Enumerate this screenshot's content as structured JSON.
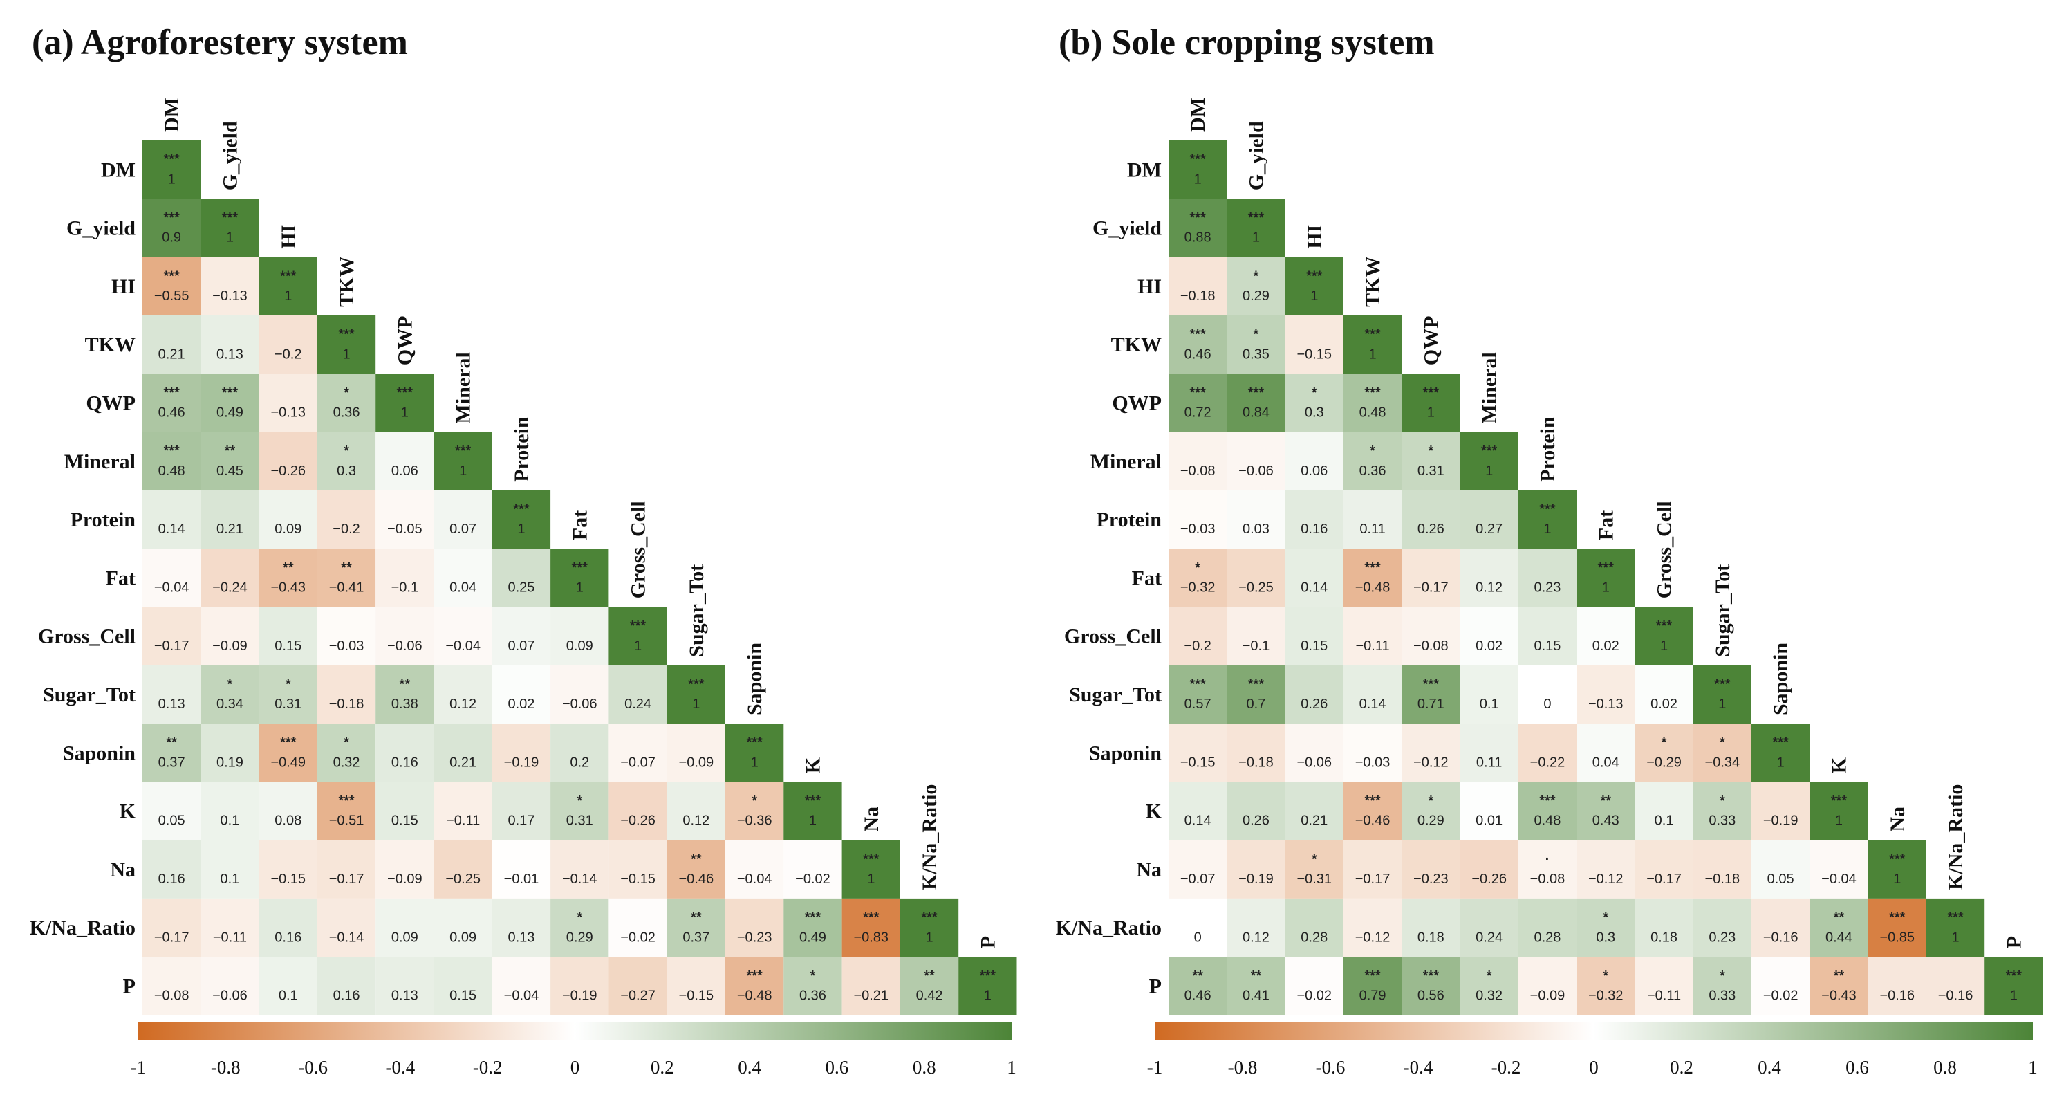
{
  "chart_data": [
    {
      "type": "heatmap",
      "title": "(a) Agroforestery system",
      "variables": [
        "DM",
        "G_yield",
        "HI",
        "TKW",
        "QWP",
        "Mineral",
        "Protein",
        "Fat",
        "Gross_Cell",
        "Sugar_Tot",
        "Saponin",
        "K",
        "Na",
        "K/Na_Ratio",
        "P"
      ],
      "column_labels": [
        "DM",
        "G_yield",
        "HI",
        "TKW",
        "QWP",
        "Mineral",
        "Protein",
        "Fat",
        "Gross_Cell",
        "Sugar_Tot",
        "Saponin",
        "K",
        "Na",
        "K/Na_Ratio",
        "P"
      ],
      "values": [
        [
          1
        ],
        [
          0.9,
          1
        ],
        [
          -0.55,
          -0.13,
          1
        ],
        [
          0.21,
          0.13,
          -0.2,
          1
        ],
        [
          0.46,
          0.49,
          -0.13,
          0.36,
          1
        ],
        [
          0.48,
          0.45,
          -0.26,
          0.3,
          0.06,
          1
        ],
        [
          0.14,
          0.21,
          0.09,
          -0.2,
          -0.05,
          0.07,
          1
        ],
        [
          -0.04,
          -0.24,
          -0.43,
          -0.41,
          -0.1,
          0.04,
          0.25,
          1
        ],
        [
          -0.17,
          -0.09,
          0.15,
          -0.03,
          -0.06,
          -0.04,
          0.07,
          0.09,
          1
        ],
        [
          0.13,
          0.34,
          0.31,
          -0.18,
          0.38,
          0.12,
          0.02,
          -0.06,
          0.24,
          1
        ],
        [
          0.37,
          0.19,
          -0.49,
          0.32,
          0.16,
          0.21,
          -0.19,
          0.2,
          -0.07,
          -0.09,
          1
        ],
        [
          0.05,
          0.1,
          0.08,
          -0.51,
          0.15,
          -0.11,
          0.17,
          0.31,
          -0.26,
          0.12,
          -0.36,
          1
        ],
        [
          0.16,
          0.1,
          -0.15,
          -0.17,
          -0.09,
          -0.25,
          -0.01,
          -0.14,
          -0.15,
          -0.46,
          -0.04,
          -0.02,
          1
        ],
        [
          -0.17,
          -0.11,
          0.16,
          -0.14,
          0.09,
          0.09,
          0.13,
          0.29,
          -0.02,
          0.37,
          -0.23,
          0.49,
          -0.83,
          1
        ],
        [
          -0.08,
          -0.06,
          0.1,
          0.16,
          0.13,
          0.15,
          -0.04,
          -0.19,
          -0.27,
          -0.15,
          -0.48,
          0.36,
          -0.21,
          0.42,
          1
        ]
      ],
      "significance": [
        [
          "***"
        ],
        [
          "***",
          "***"
        ],
        [
          "***",
          "",
          "***"
        ],
        [
          "",
          "",
          "",
          "***"
        ],
        [
          "***",
          "***",
          "",
          "*",
          "***"
        ],
        [
          "***",
          "**",
          "",
          "*",
          "",
          "***"
        ],
        [
          "",
          "",
          "",
          "",
          "",
          "",
          "***"
        ],
        [
          "",
          "",
          "**",
          "**",
          "",
          "",
          "",
          "***"
        ],
        [
          "",
          "",
          "",
          "",
          "",
          "",
          "",
          "",
          "***"
        ],
        [
          "",
          "*",
          "*",
          "",
          "**",
          "",
          "",
          "",
          "",
          "***"
        ],
        [
          "**",
          "",
          "***",
          "*",
          "",
          "",
          "",
          "",
          "",
          "",
          "***"
        ],
        [
          "",
          "",
          "",
          "***",
          "",
          "",
          "",
          "*",
          "",
          "",
          "*",
          "***"
        ],
        [
          "",
          "",
          "",
          "",
          "",
          "",
          "",
          "",
          "",
          "**",
          "",
          "",
          "***"
        ],
        [
          "",
          "",
          "",
          "",
          "",
          "",
          "",
          "*",
          "",
          "**",
          "",
          "***",
          "***",
          "***"
        ],
        [
          "",
          "",
          "",
          "",
          "",
          "",
          "",
          "",
          "",
          "",
          "***",
          "*",
          "",
          "**",
          "***"
        ]
      ],
      "color_scale": {
        "min": -1,
        "max": 1,
        "low_color": "#d06a22",
        "mid_color": "#ffffff",
        "high_color": "#4c8437"
      },
      "colorbar_ticks": [
        -1,
        -0.8,
        -0.6,
        -0.4,
        -0.2,
        0,
        0.2,
        0.4,
        0.6,
        0.8,
        1
      ]
    },
    {
      "type": "heatmap",
      "title": "(b) Sole cropping system",
      "variables": [
        "DM",
        "G_yield",
        "HI",
        "TKW",
        "QWP",
        "Mineral",
        "Protein",
        "Fat",
        "Gross_Cell",
        "Sugar_Tot",
        "Saponin",
        "K",
        "Na",
        "K/Na_Ratio",
        "P"
      ],
      "column_labels": [
        "DM",
        "G_yield",
        "HI",
        "TKW",
        "QWP",
        "Mineral",
        "Protein",
        "Fat",
        "Gross_Cell",
        "Sugar_Tot",
        "Saponin",
        "K",
        "Na",
        "K/Na_Ratio",
        "P"
      ],
      "values": [
        [
          1
        ],
        [
          0.88,
          1
        ],
        [
          -0.18,
          0.29,
          1
        ],
        [
          0.46,
          0.35,
          -0.15,
          1
        ],
        [
          0.72,
          0.84,
          0.3,
          0.48,
          1
        ],
        [
          -0.08,
          -0.06,
          0.06,
          0.36,
          0.31,
          1
        ],
        [
          -0.03,
          0.03,
          0.16,
          0.11,
          0.26,
          0.27,
          1
        ],
        [
          -0.32,
          -0.25,
          0.14,
          -0.48,
          -0.17,
          0.12,
          0.23,
          1
        ],
        [
          -0.2,
          -0.1,
          0.15,
          -0.11,
          -0.08,
          0.02,
          0.15,
          0.02,
          1
        ],
        [
          0.57,
          0.7,
          0.26,
          0.14,
          0.71,
          0.1,
          0,
          -0.13,
          0.02,
          1
        ],
        [
          -0.15,
          -0.18,
          -0.06,
          -0.03,
          -0.12,
          0.11,
          -0.22,
          0.04,
          -0.29,
          -0.34,
          1
        ],
        [
          0.14,
          0.26,
          0.21,
          -0.46,
          0.29,
          0.01,
          0.48,
          0.43,
          0.1,
          0.33,
          -0.19,
          1
        ],
        [
          -0.07,
          -0.19,
          -0.31,
          -0.17,
          -0.23,
          -0.26,
          -0.08,
          -0.12,
          -0.17,
          -0.18,
          0.05,
          -0.04,
          1
        ],
        [
          0,
          0.12,
          0.28,
          -0.12,
          0.18,
          0.24,
          0.28,
          0.3,
          0.18,
          0.23,
          -0.16,
          0.44,
          -0.85,
          1
        ],
        [
          0.46,
          0.41,
          -0.02,
          0.79,
          0.56,
          0.32,
          -0.09,
          -0.32,
          -0.11,
          0.33,
          -0.02,
          -0.43,
          -0.16,
          -0.16,
          1
        ]
      ],
      "significance": [
        [
          "***"
        ],
        [
          "***",
          "***"
        ],
        [
          "",
          "*",
          "***"
        ],
        [
          "***",
          "*",
          "",
          "***"
        ],
        [
          "***",
          "***",
          "*",
          "***",
          "***"
        ],
        [
          "",
          "",
          "",
          "*",
          "*",
          "***"
        ],
        [
          "",
          "",
          "",
          "",
          "",
          "",
          "***"
        ],
        [
          "*",
          "",
          "",
          "***",
          "",
          "",
          "",
          "***"
        ],
        [
          "",
          "",
          "",
          "",
          "",
          "",
          "",
          "",
          "***"
        ],
        [
          "***",
          "***",
          "",
          "",
          "***",
          "",
          "",
          "",
          "",
          "***"
        ],
        [
          "",
          "",
          "",
          "",
          "",
          "",
          "",
          "",
          "*",
          "*",
          "***"
        ],
        [
          "",
          "",
          "",
          "***",
          "*",
          "",
          "***",
          "**",
          "",
          "*",
          "",
          "***"
        ],
        [
          "",
          "",
          "*",
          "",
          "",
          "",
          "·",
          "",
          "",
          "",
          "",
          "",
          "***"
        ],
        [
          "",
          "",
          "",
          "",
          "",
          "",
          "",
          "*",
          "",
          "",
          "",
          "**",
          "***",
          "***"
        ],
        [
          "**",
          "**",
          "",
          "***",
          "***",
          "*",
          "",
          "*",
          "",
          "*",
          "",
          "**",
          "",
          "",
          "***"
        ]
      ],
      "color_scale": {
        "min": -1,
        "max": 1,
        "low_color": "#d06a22",
        "mid_color": "#ffffff",
        "high_color": "#4c8437"
      },
      "colorbar_ticks": [
        -1,
        -0.8,
        -0.6,
        -0.4,
        -0.2,
        0,
        0.2,
        0.4,
        0.6,
        0.8,
        1
      ]
    }
  ]
}
